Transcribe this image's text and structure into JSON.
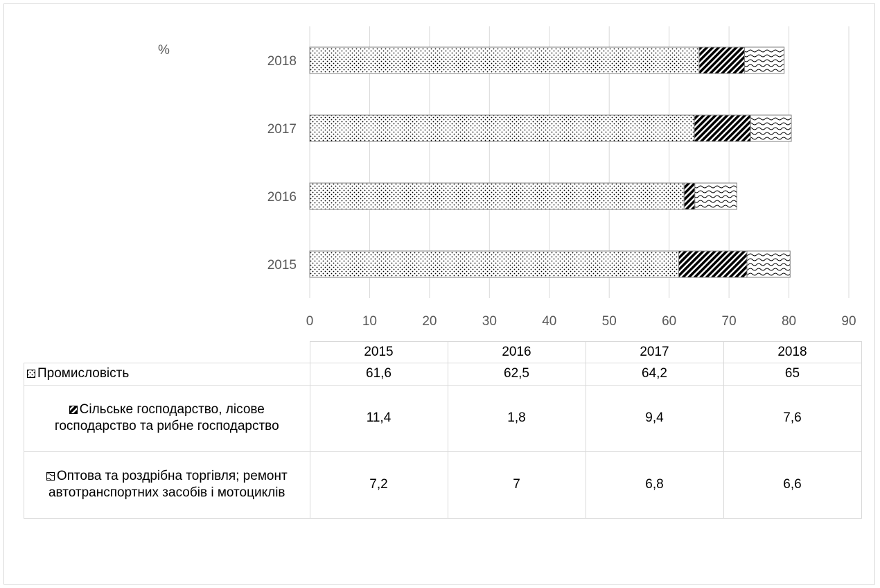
{
  "chart_data": {
    "type": "bar",
    "orientation": "horizontal",
    "stacked": true,
    "ylabel": "%",
    "categories": [
      "2015",
      "2016",
      "2017",
      "2018"
    ],
    "series": [
      {
        "name": "Промисловість",
        "values": [
          61.6,
          62.5,
          64.2,
          65
        ],
        "labels": [
          "61,6",
          "62,5",
          "64,2",
          "65"
        ],
        "pattern": "dots"
      },
      {
        "name": "Сільське господарство, лісове господарство та рибне господарство",
        "values": [
          11.4,
          1.8,
          9.4,
          7.6
        ],
        "labels": [
          "11,4",
          "1,8",
          "9,4",
          "7,6"
        ],
        "pattern": "diagonal"
      },
      {
        "name": "Оптова та роздрібна торгівля; ремонт автотранспортних засобів і мотоциклів",
        "values": [
          7.2,
          7,
          6.8,
          6.6
        ],
        "labels": [
          "7,2",
          "7",
          "6,8",
          "6,6"
        ],
        "pattern": "waves"
      }
    ],
    "xlim": [
      0,
      90
    ],
    "xticks": [
      "0",
      "10",
      "20",
      "30",
      "40",
      "50",
      "60",
      "70",
      "80",
      "90"
    ],
    "grid": true,
    "legend": "data-table-below"
  }
}
